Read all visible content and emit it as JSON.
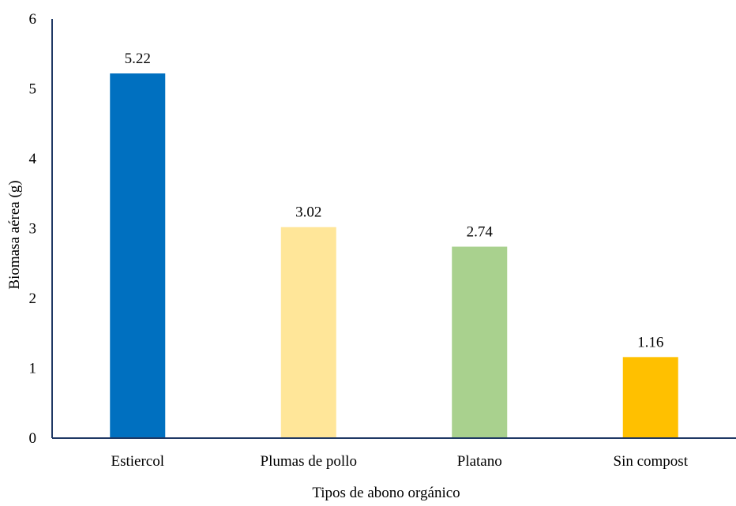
{
  "chart_data": {
    "type": "bar",
    "title": "",
    "xlabel": "Tipos de abono orgánico",
    "ylabel": "Biomasa aérea (g)",
    "categories": [
      "Estiercol",
      "Plumas de pollo",
      "Platano",
      "Sin compost"
    ],
    "values": [
      5.22,
      3.02,
      2.74,
      1.16
    ],
    "data_labels": [
      "5.22",
      "3.02",
      "2.74",
      "1.16"
    ],
    "bar_colors": [
      "#0070c0",
      "#ffe699",
      "#a9d18e",
      "#ffc000"
    ],
    "ylim": [
      0,
      6
    ],
    "yticks": [
      "0",
      "1",
      "2",
      "3",
      "4",
      "5",
      "6"
    ],
    "grid": false,
    "legend": "none",
    "axis_color": "#1f3864"
  }
}
